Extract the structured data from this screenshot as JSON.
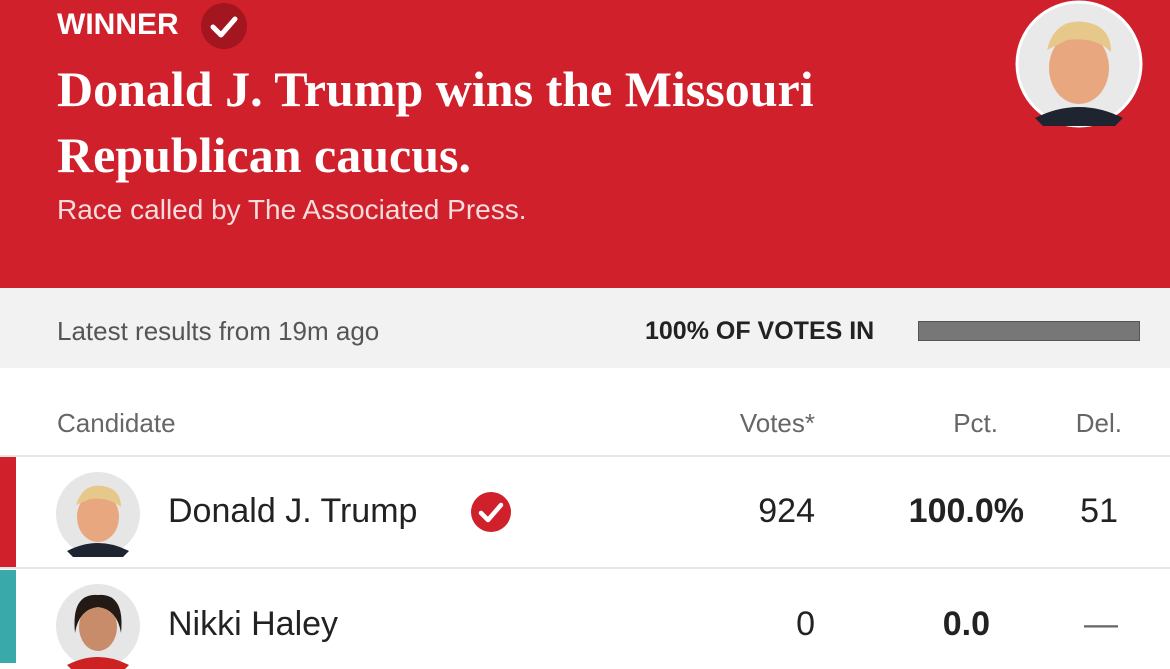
{
  "banner": {
    "label": "WINNER",
    "headline": "Donald J. Trump wins the Missouri Republican caucus.",
    "note": "Race called by The Associated Press."
  },
  "status": {
    "updated": "Latest results from 19m ago",
    "reporting": "100% OF VOTES IN"
  },
  "table": {
    "columns": [
      "Candidate",
      "Votes*",
      "Pct.",
      "Del."
    ],
    "rows": [
      [
        "Donald J. Trump",
        924,
        "100.0%",
        51
      ],
      [
        "Nikki Haley",
        0,
        "0.0",
        "—"
      ]
    ]
  }
}
